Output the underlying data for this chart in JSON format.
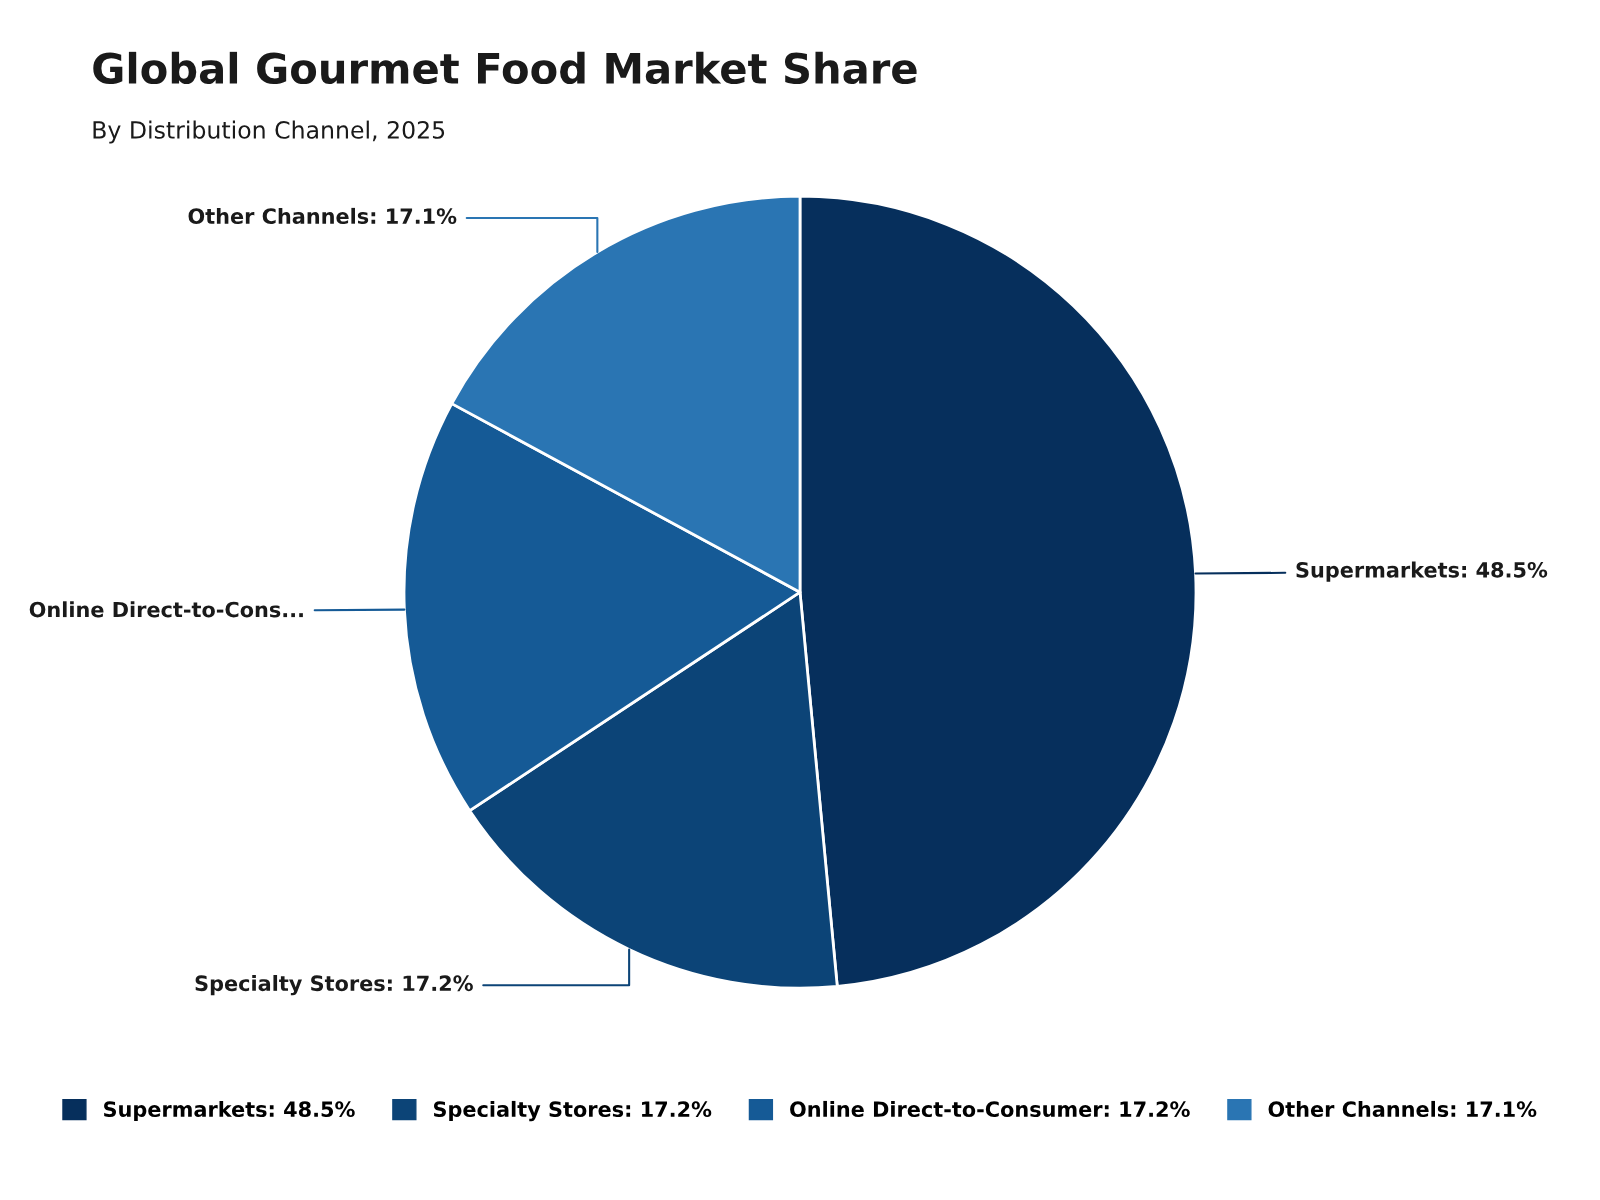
{
  "chart_data": {
    "type": "pie",
    "title": "Global Gourmet Food Market Share",
    "subtitle": "By Distribution Channel, 2025",
    "categories": [
      "Supermarkets: 48.5%",
      "Specialty Stores: 17.2%",
      "Online Direct-to-Consumer: 17.2%",
      "Other Channels: 17.1%"
    ],
    "values": [
      48.5,
      17.2,
      17.2,
      17.1
    ],
    "value_labels": [
      "Supermarkets: 48.5%",
      "Specialty Stores: 17.2%",
      "Online Direct-to-Cons...",
      "Other Channels: 17.1%"
    ],
    "colors": [
      "#062f5c",
      "#0c4477",
      "#155a96",
      "#2a75b3"
    ],
    "legend": "bottom"
  }
}
